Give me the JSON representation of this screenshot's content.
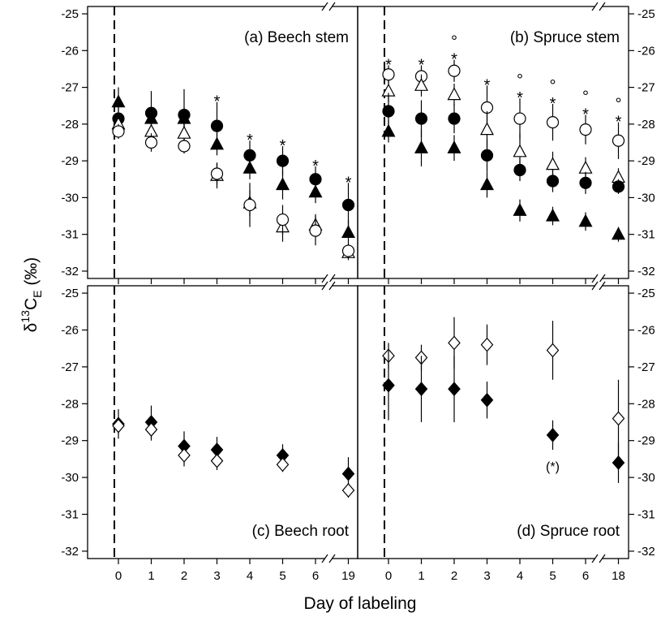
{
  "figure": {
    "ylabel_prefix": "δ",
    "ylabel_sup": "13",
    "ylabel_main": "C",
    "ylabel_sub": "E",
    "ylabel_suffix": " (‰)",
    "xlabel": "Day of labeling"
  },
  "chart_data": [
    {
      "type": "scatter",
      "title": "(a) Beech stem",
      "ylim": [
        -32.2,
        -24.8
      ],
      "yticks": [
        -32,
        -31,
        -30,
        -29,
        -28,
        -27,
        -26,
        -25
      ],
      "x_categories": [
        "0",
        "1",
        "2",
        "3",
        "4",
        "5",
        "6",
        "19"
      ],
      "axis_break": "between 6 and 19",
      "labeling_start_line": 0.5,
      "series": [
        {
          "marker": "filled-circle",
          "values": [
            -27.85,
            -27.7,
            -27.75,
            -28.05,
            -28.85,
            -29.0,
            -29.5,
            -30.2
          ],
          "err": [
            0.3,
            0.6,
            0.7,
            0.65,
            0.4,
            0.4,
            0.35,
            0.6
          ]
        },
        {
          "marker": "filled-triangle",
          "values": [
            -27.4,
            -27.85,
            -27.85,
            -28.55,
            -29.2,
            -29.65,
            -29.85,
            -30.95
          ],
          "err": [
            0.4,
            0.3,
            0.3,
            0.3,
            0.3,
            0.4,
            0.3,
            0.35
          ]
        },
        {
          "marker": "open-triangle",
          "values": [
            -28.0,
            -28.2,
            -28.25,
            -29.4,
            -30.15,
            -30.8,
            -30.75,
            -31.5
          ],
          "err": [
            0.3,
            0.3,
            0.3,
            0.35,
            0.35,
            0.4,
            0.3,
            0.2
          ]
        },
        {
          "marker": "open-circle",
          "values": [
            -28.2,
            -28.5,
            -28.6,
            -29.35,
            -30.2,
            -30.6,
            -30.9,
            -31.45
          ],
          "err": [
            0.2,
            0.25,
            0.2,
            0.3,
            0.6,
            0.4,
            0.4,
            0.2
          ]
        }
      ],
      "annotations": [
        {
          "x": 3,
          "row": 0,
          "text": "*"
        },
        {
          "x": 4,
          "row": 0,
          "text": "*"
        },
        {
          "x": 5,
          "row": 0,
          "text": "*"
        },
        {
          "x": 6,
          "row": 0,
          "text": "*"
        },
        {
          "x": 7,
          "row": 0,
          "text": "*"
        }
      ]
    },
    {
      "type": "scatter",
      "title": "(b) Spruce stem",
      "ylim": [
        -32.2,
        -24.8
      ],
      "yticks": [
        -32,
        -31,
        -30,
        -29,
        -28,
        -27,
        -26,
        -25
      ],
      "x_categories": [
        "0",
        "1",
        "2",
        "3",
        "4",
        "5",
        "6",
        "18"
      ],
      "axis_break": "between 6 and 18",
      "labeling_start_line": 0.5,
      "series": [
        {
          "marker": "open-circle",
          "values": [
            -26.65,
            -26.7,
            -26.55,
            -27.55,
            -27.85,
            -27.95,
            -28.15,
            -28.45
          ],
          "err": [
            0.25,
            0.3,
            0.3,
            0.6,
            0.55,
            0.5,
            0.4,
            0.5
          ]
        },
        {
          "marker": "open-triangle",
          "values": [
            -27.1,
            -26.95,
            -27.2,
            -28.15,
            -28.75,
            -29.1,
            -29.2,
            -29.45
          ],
          "err": [
            0.3,
            0.3,
            0.3,
            0.5,
            0.5,
            0.35,
            0.3,
            0.25
          ]
        },
        {
          "marker": "filled-circle",
          "values": [
            -27.65,
            -27.85,
            -27.85,
            -28.85,
            -29.25,
            -29.55,
            -29.6,
            -29.7
          ],
          "err": [
            0.5,
            0.5,
            0.4,
            0.45,
            0.3,
            0.3,
            0.3,
            0.2
          ]
        },
        {
          "marker": "filled-triangle",
          "values": [
            -28.2,
            -28.65,
            -28.65,
            -29.65,
            -30.35,
            -30.5,
            -30.65,
            -31.0
          ],
          "err": [
            0.3,
            0.5,
            0.35,
            0.35,
            0.3,
            0.25,
            0.25,
            0.2
          ]
        }
      ],
      "annotations": [
        {
          "x": 0,
          "row": 0,
          "text": "*"
        },
        {
          "x": 1,
          "row": 0,
          "text": "*"
        },
        {
          "x": 2,
          "row": 1,
          "text": "°"
        },
        {
          "x": 2,
          "row": 0,
          "text": "*"
        },
        {
          "x": 3,
          "row": 0,
          "text": "*"
        },
        {
          "x": 4,
          "row": 1,
          "text": "°"
        },
        {
          "x": 4,
          "row": 0,
          "text": "*"
        },
        {
          "x": 5,
          "row": 1,
          "text": "°"
        },
        {
          "x": 5,
          "row": 0,
          "text": "*"
        },
        {
          "x": 6,
          "row": 1,
          "text": "°"
        },
        {
          "x": 6,
          "row": 0,
          "text": "*"
        },
        {
          "x": 7,
          "row": 1,
          "text": "°"
        },
        {
          "x": 7,
          "row": 0,
          "text": "*"
        }
      ]
    },
    {
      "type": "scatter",
      "title": "(c) Beech root",
      "ylim": [
        -32.2,
        -24.8
      ],
      "yticks": [
        -32,
        -31,
        -30,
        -29,
        -28,
        -27,
        -26,
        -25
      ],
      "x_categories": [
        "0",
        "1",
        "2",
        "3",
        "4",
        "5",
        "6",
        "19"
      ],
      "axis_break": "between 6 and 19",
      "labeling_start_line": 0.5,
      "series": [
        {
          "marker": "filled-diamond",
          "xs": [
            0,
            1,
            2,
            3,
            5,
            7
          ],
          "values": [
            -28.55,
            -28.5,
            -29.15,
            -29.25,
            -29.4,
            -29.9
          ],
          "err": [
            0.4,
            0.45,
            0.4,
            0.35,
            0.3,
            0.45
          ]
        },
        {
          "marker": "open-diamond",
          "xs": [
            0,
            1,
            2,
            3,
            5,
            7
          ],
          "values": [
            -28.6,
            -28.7,
            -29.4,
            -29.55,
            -29.65,
            -30.35
          ],
          "err": [
            0.2,
            0.3,
            0.3,
            0.25,
            0.2,
            0.2
          ]
        }
      ],
      "annotations": []
    },
    {
      "type": "scatter",
      "title": "(d) Spruce root",
      "ylim": [
        -32.2,
        -24.8
      ],
      "yticks": [
        -32,
        -31,
        -30,
        -29,
        -28,
        -27,
        -26,
        -25
      ],
      "x_categories": [
        "0",
        "1",
        "2",
        "3",
        "4",
        "5",
        "6",
        "18"
      ],
      "axis_break": "between 6 and 18",
      "labeling_start_line": 0.5,
      "series": [
        {
          "marker": "open-diamond",
          "xs": [
            0,
            1,
            2,
            3,
            5,
            7
          ],
          "values": [
            -26.7,
            -26.75,
            -26.35,
            -26.4,
            -26.55,
            -28.4
          ],
          "err": [
            0.35,
            0.35,
            0.7,
            0.55,
            0.8,
            1.05
          ]
        },
        {
          "marker": "filled-diamond",
          "xs": [
            0,
            1,
            2,
            3,
            5,
            7
          ],
          "values": [
            -27.5,
            -27.6,
            -27.6,
            -27.9,
            -28.85,
            -29.6
          ],
          "err": [
            0.95,
            0.9,
            0.9,
            0.5,
            0.4,
            0.55
          ]
        }
      ],
      "annotations": [
        {
          "x": 5,
          "row": -1,
          "text": "(*)"
        }
      ]
    }
  ]
}
